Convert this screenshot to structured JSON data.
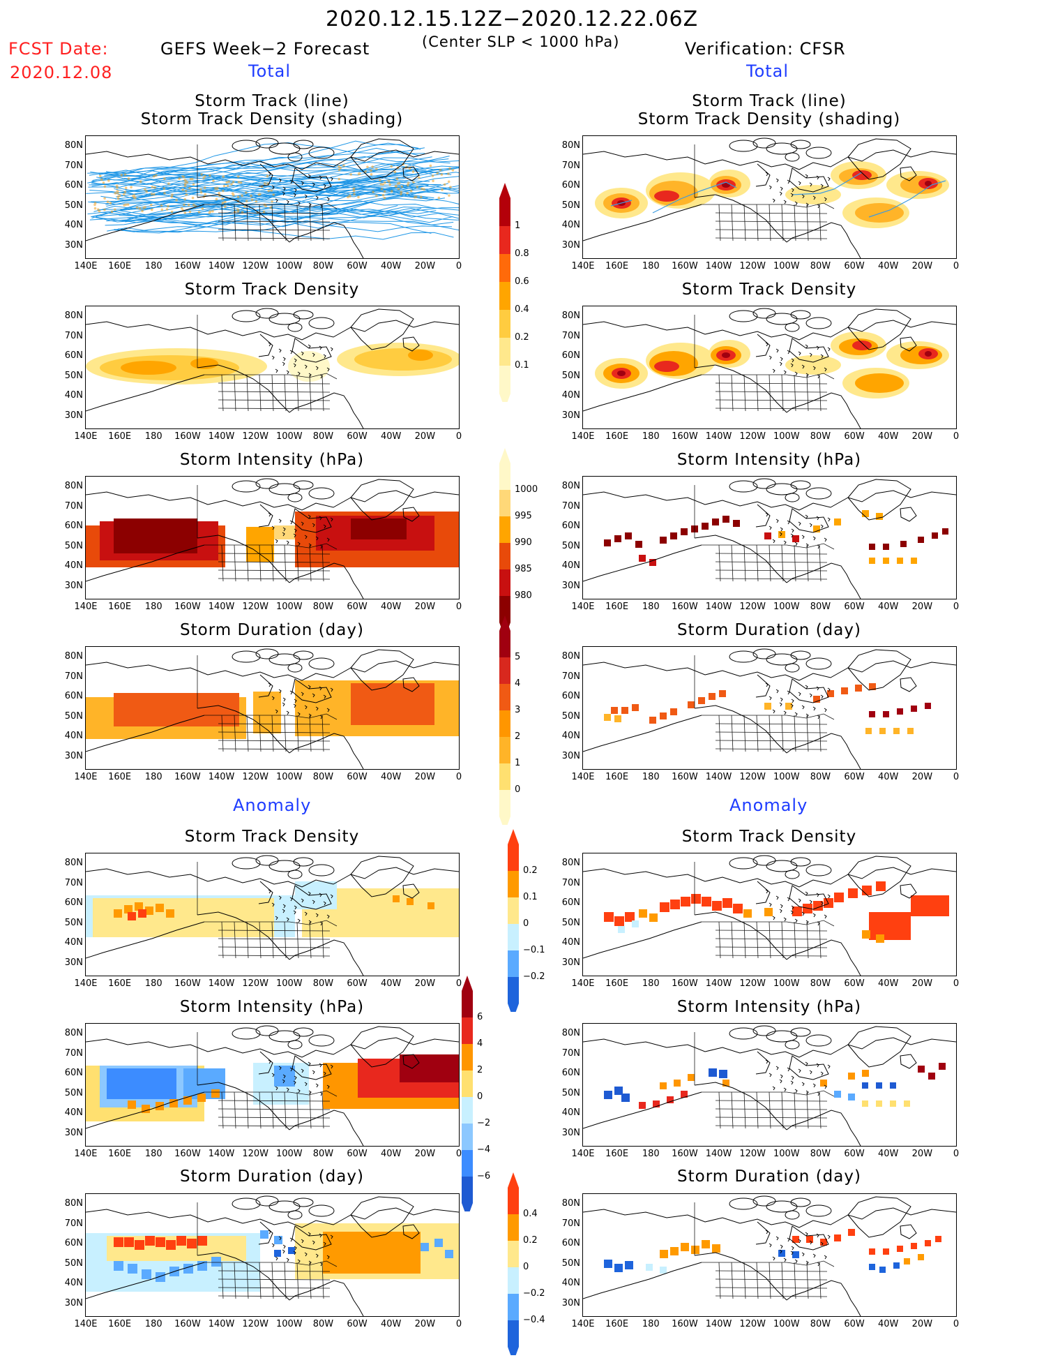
{
  "header": {
    "period": "2020.12.15.12Z−2020.12.22.06Z",
    "fcst_label": "FCST Date:",
    "fcst_date": "2020.12.08",
    "left_title": "GEFS Week−2 Forecast",
    "condition": "(Center SLP < 1000 hPa)",
    "right_title": "Verification: CFSR"
  },
  "sections": {
    "total": "Total",
    "anomaly": "Anomaly"
  },
  "panel_titles": {
    "track_line": "Storm Track (line)",
    "track_shading": "Storm Track Density (shading)",
    "density": "Storm Track Density",
    "intensity": "Storm Intensity (hPa)",
    "duration": "Storm Duration (day)"
  },
  "axes": {
    "lat_labels": [
      "80N",
      "70N",
      "60N",
      "50N",
      "40N",
      "30N"
    ],
    "lon_labels": [
      "140E",
      "160E",
      "180",
      "160W",
      "140W",
      "120W",
      "100W",
      "80W",
      "60W",
      "40W",
      "20W",
      "0"
    ]
  },
  "colorbars": {
    "density_total": {
      "labels": [
        "1",
        "0.8",
        "0.6",
        "0.4",
        "0.2",
        "0.1"
      ],
      "colors": [
        "#b4000a",
        "#e8281e",
        "#ff6a0a",
        "#ffa500",
        "#ffcc40",
        "#ffe88c",
        "#fff8c8"
      ]
    },
    "intensity_total": {
      "labels": [
        "1000",
        "995",
        "990",
        "985",
        "980"
      ],
      "colors": [
        "#fff8c8",
        "#ffd878",
        "#ffa500",
        "#e84a0a",
        "#c81010",
        "#8c0000"
      ]
    },
    "duration_total": {
      "labels": [
        "5",
        "4",
        "3",
        "2",
        "1",
        "0"
      ],
      "colors": [
        "#a00010",
        "#d8281e",
        "#f05a14",
        "#ff9600",
        "#ffb428",
        "#ffe070",
        "#fff8c8"
      ]
    },
    "density_anom": {
      "labels": [
        "0.2",
        "0.1",
        "0",
        "−0.1",
        "−0.2"
      ],
      "colors": [
        "#ff4010",
        "#ff9a00",
        "#ffe88c",
        "#c8f0ff",
        "#5aaaff",
        "#1e64dc"
      ]
    },
    "intensity_anom": {
      "labels": [
        "6",
        "4",
        "2",
        "0",
        "−2",
        "−4",
        "−6"
      ],
      "colors": [
        "#a00010",
        "#e8281e",
        "#ff9600",
        "#ffe070",
        "#c8f0ff",
        "#8cc8ff",
        "#3c8cff",
        "#1e5ad2"
      ]
    },
    "duration_anom": {
      "labels": [
        "0.4",
        "0.2",
        "0",
        "−0.2",
        "−0.4"
      ],
      "colors": [
        "#ff4010",
        "#ff9a00",
        "#ffe88c",
        "#c8f0ff",
        "#5aaaff",
        "#1e64dc"
      ]
    }
  },
  "colors": {
    "accent_red": "#ff2020",
    "accent_blue": "#1e3cff",
    "track_line": "#1e96e6"
  }
}
